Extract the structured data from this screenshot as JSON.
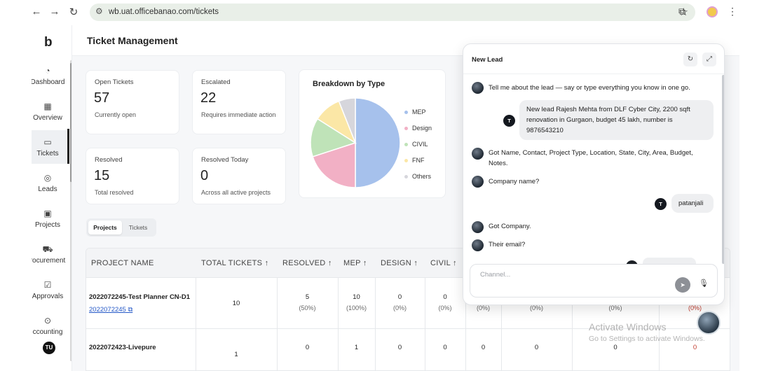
{
  "browser": {
    "url": "wb.uat.officebanao.com/tickets"
  },
  "sidebar": {
    "logo": "b",
    "items": [
      {
        "label": "Dashboard",
        "display": "Dashboard",
        "icon": "dashboard-icon"
      },
      {
        "label": "Overview",
        "display": "Overview",
        "icon": "grid-icon"
      },
      {
        "label": "Tickets",
        "display": "Tickets",
        "icon": "ticket-icon"
      },
      {
        "label": "Leads",
        "display": "Leads",
        "icon": "leads-icon"
      },
      {
        "label": "Projects",
        "display": "Projects",
        "icon": "projects-icon"
      },
      {
        "label": "Procurement",
        "display": "rocurement",
        "icon": "truck-icon"
      },
      {
        "label": "Approvals",
        "display": "Approvals",
        "icon": "approval-icon"
      },
      {
        "label": "Accounting",
        "display": "ccounting",
        "icon": "accounting-icon"
      }
    ],
    "user_initials": "TU"
  },
  "page": {
    "title": "Ticket Management"
  },
  "stats": {
    "open": {
      "label": "Open Tickets",
      "value": "57",
      "sub": "Currently open"
    },
    "escalated": {
      "label": "Escalated",
      "value": "22",
      "sub": "Requires immediate action"
    },
    "resolved": {
      "label": "Resolved",
      "value": "15",
      "sub": "Total resolved"
    },
    "resolved_today": {
      "label": "Resolved Today",
      "value": "0",
      "sub": "Across all active projects"
    }
  },
  "breakdown": {
    "title": "Breakdown by Type"
  },
  "chart_data": {
    "type": "pie",
    "title": "Breakdown by Type",
    "slices": [
      {
        "label": "MEP",
        "value": 50,
        "color": "#a6c1ec"
      },
      {
        "label": "Design",
        "value": 20,
        "color": "#f2b0c5"
      },
      {
        "label": "CIVIL",
        "value": 14,
        "color": "#bfe3b8"
      },
      {
        "label": "FNF",
        "value": 10,
        "color": "#fbe7a6"
      },
      {
        "label": "Others",
        "value": 6,
        "color": "#d6d6dc"
      }
    ],
    "legend_position": "right"
  },
  "tabs": [
    "Projects",
    "Tickets"
  ],
  "table": {
    "headers": [
      "PROJECT NAME",
      "TOTAL TICKETS ↑",
      "RESOLVED ↑",
      "MEP ↑",
      "DESIGN ↑",
      "CIVIL ↑"
    ],
    "rows": [
      {
        "name": "2022072245-Test Planner CN-D1",
        "id": "2022072245",
        "total": "10",
        "resolved": "5",
        "resolved_pct": "(50%)",
        "mep": "10",
        "mep_pct": "(100%)",
        "design": "0",
        "design_pct": "(0%)",
        "civil": "0",
        "civil_pct": "(0%)",
        "c7": "(0%)",
        "c8": "(0%)",
        "c9": "(0%)",
        "c10": "(0%)"
      },
      {
        "name": "2022072423-Livepure",
        "total": "1",
        "resolved": "0",
        "mep": "1",
        "design": "0",
        "civil": "0",
        "c7": "0",
        "c8": "0",
        "c9": "0",
        "c10": "0"
      }
    ]
  },
  "chat": {
    "title": "New Lead",
    "bot_msg_1": "Tell me about the lead — say or type everything you know in one go.",
    "user_msg_1": "New lead Rajesh Mehta from DLF Cyber City, 2200 sqft renovation in Gurgaon, budget 45 lakh, number is 9876543210",
    "user_initial": "T",
    "bot_msg_2": "Got Name, Contact, Project Type, Location, State, City, Area, Budget, Notes.",
    "bot_msg_3": "Company name?",
    "user_msg_2": "patanjali",
    "bot_msg_4": "Got Company.",
    "bot_msg_5": "Their email?",
    "input_placeholder": "Channel..."
  },
  "watermark": {
    "line1": "Activate Windows",
    "line2": "Go to Settings to activate Windows."
  }
}
